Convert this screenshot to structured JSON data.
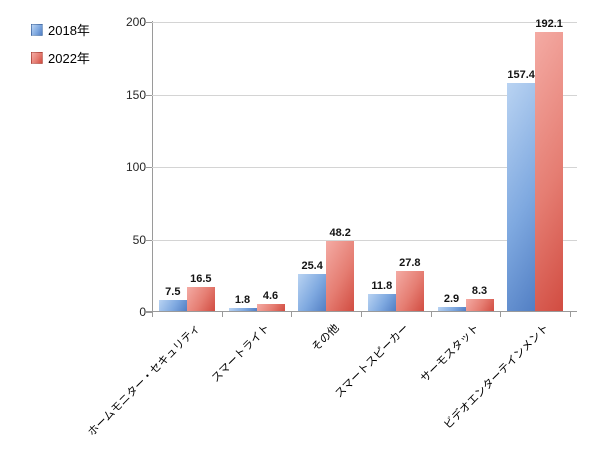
{
  "chart_data": {
    "type": "bar",
    "title": "",
    "xlabel": "",
    "ylabel": "",
    "categories": [
      "ホームモニター・セキュリティ",
      "スマートライト",
      "その他",
      "スマートスピーカー",
      "サーモスタット",
      "ビデオエンターテインメント"
    ],
    "series": [
      {
        "name": "2018年",
        "color": "#7fa9e0",
        "color_light": "#b9d3f2",
        "color_dark": "#527fc4",
        "values": [
          7.5,
          1.8,
          25.4,
          11.8,
          2.9,
          157.4
        ]
      },
      {
        "name": "2022年",
        "color": "#e57d72",
        "color_light": "#f4aba4",
        "color_dark": "#d14c41",
        "values": [
          16.5,
          4.6,
          48.2,
          27.8,
          8.3,
          192.1
        ]
      }
    ],
    "data_labels": true,
    "ylim": [
      0,
      200
    ],
    "yticks": [
      0,
      50,
      100,
      150,
      200
    ],
    "grid": true,
    "legend_position": "top-left",
    "colors": {
      "axis": "#9a9a9a",
      "gridline": "#d4d4d4",
      "label_text": "#141414"
    }
  }
}
